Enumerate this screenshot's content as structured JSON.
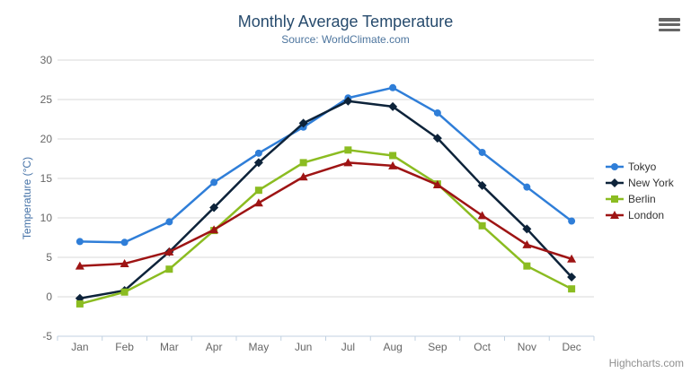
{
  "credits": {
    "label": "Highcharts.com"
  },
  "menu": {
    "icon": "hamburger-icon"
  },
  "chart_data": {
    "type": "line",
    "title": "Monthly Average Temperature",
    "subtitle": "Source: WorldClimate.com",
    "xlabel": "",
    "ylabel": "Temperature (°C)",
    "ylim": [
      -5,
      30
    ],
    "ytick_step": 5,
    "grid": true,
    "legend_position": "right",
    "categories": [
      "Jan",
      "Feb",
      "Mar",
      "Apr",
      "May",
      "Jun",
      "Jul",
      "Aug",
      "Sep",
      "Oct",
      "Nov",
      "Dec"
    ],
    "yticks": [
      -5,
      0,
      5,
      10,
      15,
      20,
      25,
      30
    ],
    "series": [
      {
        "name": "Tokyo",
        "color": "#2f7ed8",
        "marker": "circle",
        "values": [
          7.0,
          6.9,
          9.5,
          14.5,
          18.2,
          21.5,
          25.2,
          26.5,
          23.3,
          18.3,
          13.9,
          9.6
        ]
      },
      {
        "name": "New York",
        "color": "#0d233a",
        "marker": "diamond",
        "values": [
          -0.2,
          0.8,
          5.7,
          11.3,
          17.0,
          22.0,
          24.8,
          24.1,
          20.1,
          14.1,
          8.6,
          2.5
        ]
      },
      {
        "name": "Berlin",
        "color": "#8bbc21",
        "marker": "square",
        "values": [
          -0.9,
          0.6,
          3.5,
          8.4,
          13.5,
          17.0,
          18.6,
          17.9,
          14.3,
          9.0,
          3.9,
          1.0
        ]
      },
      {
        "name": "London",
        "color": "#9e1414",
        "marker": "triangle",
        "values": [
          3.9,
          4.2,
          5.7,
          8.5,
          11.9,
          15.2,
          17.0,
          16.6,
          14.2,
          10.3,
          6.6,
          4.8
        ]
      }
    ],
    "axis_colors": {
      "grid": "#d8d8d8",
      "axis_line": "#c0d0e0",
      "tick": "#c0d0e0",
      "label": "#666666"
    }
  }
}
